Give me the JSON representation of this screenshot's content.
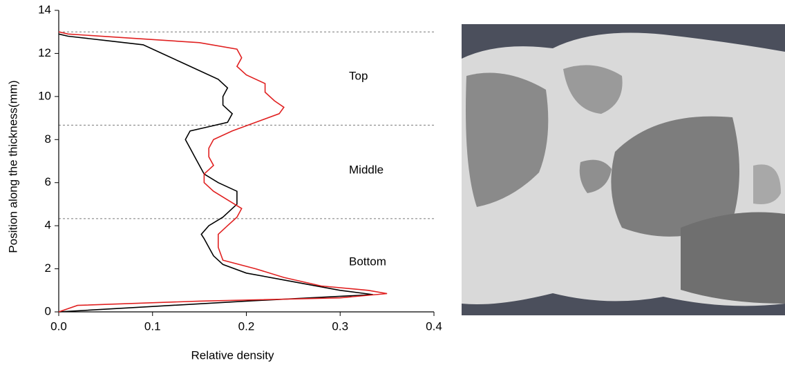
{
  "chart_data": {
    "type": "line",
    "xlabel": "Relative density",
    "ylabel": "Position along the thickness(mm)",
    "xlim": [
      0,
      0.4
    ],
    "xticks": [
      {
        "value": 0,
        "label": "0.0"
      },
      0.1,
      0.2,
      0.3,
      0.4
    ],
    "ylim": [
      0,
      14
    ],
    "yticks": [
      0,
      2,
      4,
      6,
      8,
      10,
      12,
      14
    ],
    "reference_lines": [
      13,
      8.67,
      4.33
    ],
    "annotations": [
      "Top",
      "Middle",
      "Bottom"
    ],
    "series": [
      {
        "color": "#000000",
        "x": [
          0,
          0.1,
          0.2,
          0.335,
          0.3,
          0.25,
          0.2,
          0.175,
          0.165,
          0.16,
          0.155,
          0.152,
          0.16,
          0.175,
          0.185,
          0.19,
          0.19,
          0.19,
          0.17,
          0.155,
          0.15,
          0.145,
          0.14,
          0.135,
          0.14,
          0.16,
          0.18,
          0.185,
          0.175,
          0.175,
          0.18,
          0.17,
          0.15,
          0.13,
          0.11,
          0.09,
          0.05,
          0.01,
          0
        ],
        "y": [
          0,
          0.25,
          0.5,
          0.8,
          1.0,
          1.4,
          1.8,
          2.2,
          2.6,
          3.0,
          3.4,
          3.6,
          4.0,
          4.4,
          4.8,
          5.0,
          5.4,
          5.6,
          6.0,
          6.4,
          6.8,
          7.2,
          7.6,
          8.0,
          8.4,
          8.6,
          8.8,
          9.2,
          9.6,
          10.0,
          10.4,
          10.8,
          11.2,
          11.6,
          12.0,
          12.4,
          12.6,
          12.8,
          12.9
        ]
      },
      {
        "color": "#e02020",
        "x": [
          0,
          0.02,
          0.15,
          0.3,
          0.35,
          0.33,
          0.28,
          0.24,
          0.21,
          0.175,
          0.17,
          0.17,
          0.18,
          0.19,
          0.195,
          0.18,
          0.165,
          0.155,
          0.155,
          0.165,
          0.16,
          0.16,
          0.165,
          0.185,
          0.21,
          0.235,
          0.24,
          0.23,
          0.22,
          0.22,
          0.2,
          0.19,
          0.195,
          0.19,
          0.15,
          0.08,
          0.01,
          0
        ],
        "y": [
          0,
          0.3,
          0.5,
          0.65,
          0.85,
          1.0,
          1.2,
          1.6,
          2.0,
          2.4,
          3.0,
          3.6,
          4.0,
          4.4,
          4.8,
          5.2,
          5.6,
          6.0,
          6.4,
          6.8,
          7.2,
          7.6,
          8.0,
          8.4,
          8.8,
          9.2,
          9.5,
          9.8,
          10.2,
          10.6,
          11.0,
          11.4,
          11.8,
          12.2,
          12.5,
          12.7,
          12.9,
          13.0
        ]
      }
    ]
  }
}
